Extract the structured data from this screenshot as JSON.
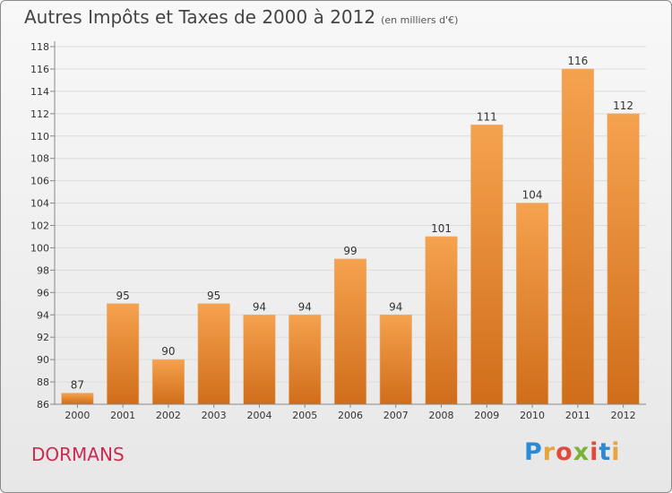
{
  "title": {
    "main": "Autres Impôts et Taxes de 2000 à 2012",
    "unit": "(en milliers d'€)"
  },
  "place": "DORMANS",
  "logo": {
    "letters": [
      "P",
      "r",
      "o",
      "x",
      "i",
      "t",
      "i"
    ],
    "colors": [
      "#2b8ad6",
      "#e8a33c",
      "#e04b3b",
      "#7ab33a",
      "#e04b3b",
      "#2b8ad6",
      "#e8a33c"
    ]
  },
  "colors": {
    "bar_top": "#f5a24e",
    "bar_bottom": "#d06d1a",
    "grid": "#dcdcdc"
  },
  "chart_data": {
    "type": "bar",
    "categories": [
      "2000",
      "2001",
      "2002",
      "2003",
      "2004",
      "2005",
      "2006",
      "2007",
      "2008",
      "2009",
      "2010",
      "2011",
      "2012"
    ],
    "values": [
      87,
      95,
      90,
      95,
      94,
      94,
      99,
      94,
      101,
      111,
      104,
      116,
      112
    ],
    "ylim": [
      86,
      118
    ],
    "yticks": [
      86,
      88,
      90,
      92,
      94,
      96,
      98,
      100,
      102,
      104,
      106,
      108,
      110,
      112,
      114,
      116,
      118
    ],
    "grid": true,
    "title": "Autres Impôts et Taxes de 2000 à 2012",
    "xlabel": "",
    "ylabel": ""
  }
}
